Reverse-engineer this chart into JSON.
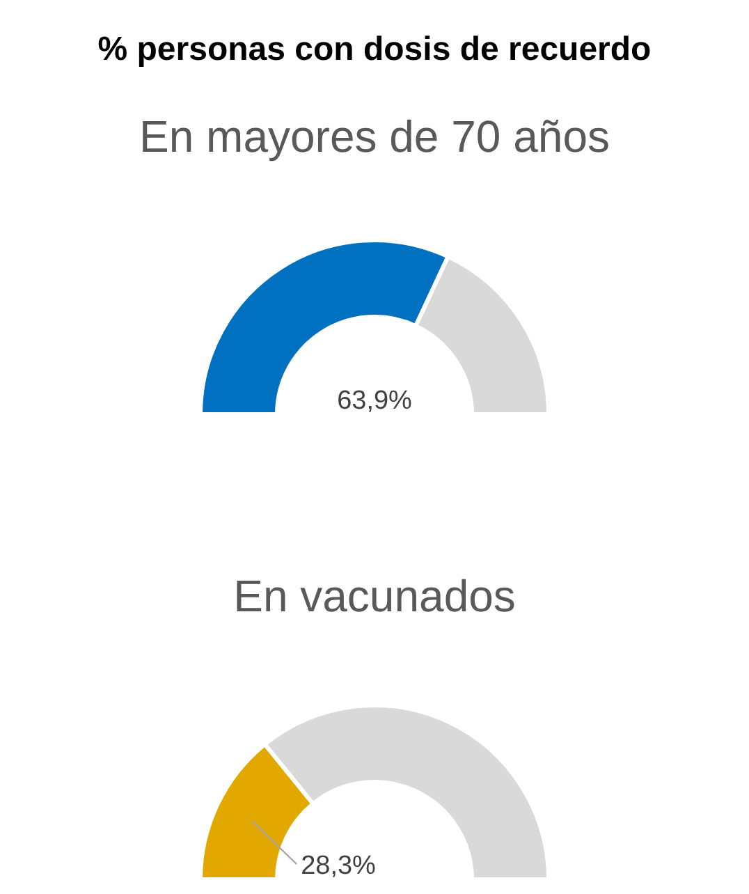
{
  "chart_data": [
    {
      "type": "donut",
      "title": "% personas con dosis de recuerdo",
      "subtitle": "En mayores de 70 años",
      "categories": [
        null,
        null
      ],
      "values": [
        63.9,
        36.1
      ],
      "colors": [
        "#0070c0",
        "#d9d9d9"
      ],
      "value_labels": [
        "63,9%",
        null
      ]
    },
    {
      "type": "donut",
      "title": "En vacunados",
      "categories": [
        null,
        null
      ],
      "values": [
        28.3,
        71.7
      ],
      "colors": [
        "#e3a800",
        "#d9d9d9"
      ],
      "value_labels": [
        "28,3%",
        null
      ]
    }
  ]
}
